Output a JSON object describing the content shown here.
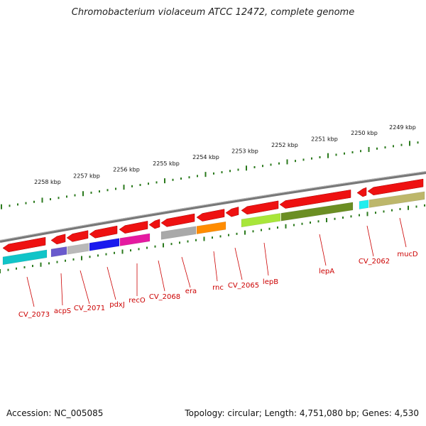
{
  "title": "Chromobacterium violaceum ATCC 12472, complete genome",
  "accession": "Accession: NC_005085",
  "stats": "Topology: circular; Length: 4,751,080 bp; Genes: 4,530",
  "colors": {
    "backbone": "#888888",
    "cds": "#ee0000",
    "tick": "#2b7a1d",
    "label": "#cc0000"
  },
  "scale_labels": [
    "2258 kbp",
    "2257 kbp",
    "2256 kbp",
    "2255 kbp",
    "2254 kbp",
    "2253 kbp",
    "2252 kbp",
    "2251 kbp",
    "2250 kbp",
    "2249 kbp"
  ],
  "gene_labels": [
    "CV_2073",
    "acpS",
    "CV_2071",
    "pdxJ",
    "recO",
    "CV_2068",
    "era",
    "rnc",
    "CV_2065",
    "lepB",
    "lepA",
    "CV_2062",
    "mucD"
  ]
}
